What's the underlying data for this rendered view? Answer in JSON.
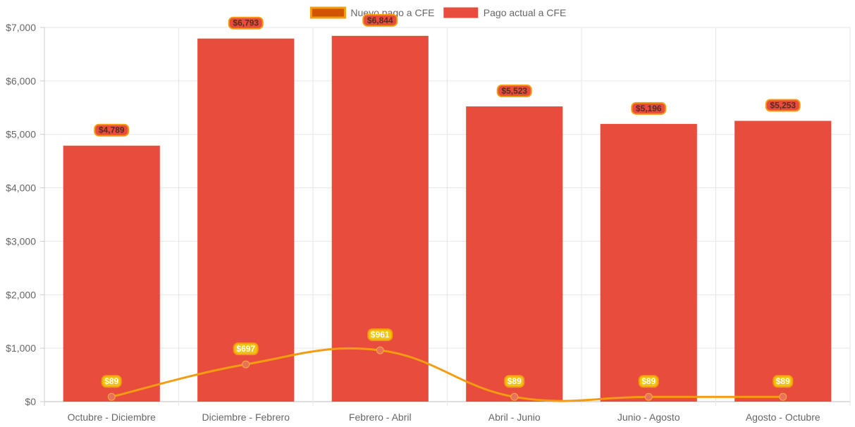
{
  "chart_data": {
    "type": "bar",
    "categories": [
      "Octubre - Diciembre",
      "Diciembre - Febrero",
      "Febrero - Abril",
      "Abril - Junio",
      "Junio - Agosto",
      "Agosto - Octubre"
    ],
    "series": [
      {
        "name": "Nuevo pago a CFE",
        "type": "line",
        "values": [
          89,
          697,
          961,
          89,
          89,
          89
        ],
        "labels": [
          "$89",
          "$697",
          "$961",
          "$89",
          "$89",
          "$89"
        ],
        "color": "#f39c12",
        "point_color": "#e8735a",
        "legend_fill": "#d35400"
      },
      {
        "name": "Pago actual a CFE",
        "type": "bar",
        "values": [
          4789,
          6793,
          6844,
          5523,
          5196,
          5253
        ],
        "labels": [
          "$4,789",
          "$6,793",
          "$6,844",
          "$5,523",
          "$5,196",
          "$5,253"
        ],
        "color": "#e74c3c",
        "label_border": "#f39c12"
      }
    ],
    "ylim": [
      0,
      7000
    ],
    "yticks": [
      "$0",
      "$1,000",
      "$2,000",
      "$3,000",
      "$4,000",
      "$5,000",
      "$6,000",
      "$7,000"
    ],
    "grid": true,
    "legend_position": "top-center"
  }
}
